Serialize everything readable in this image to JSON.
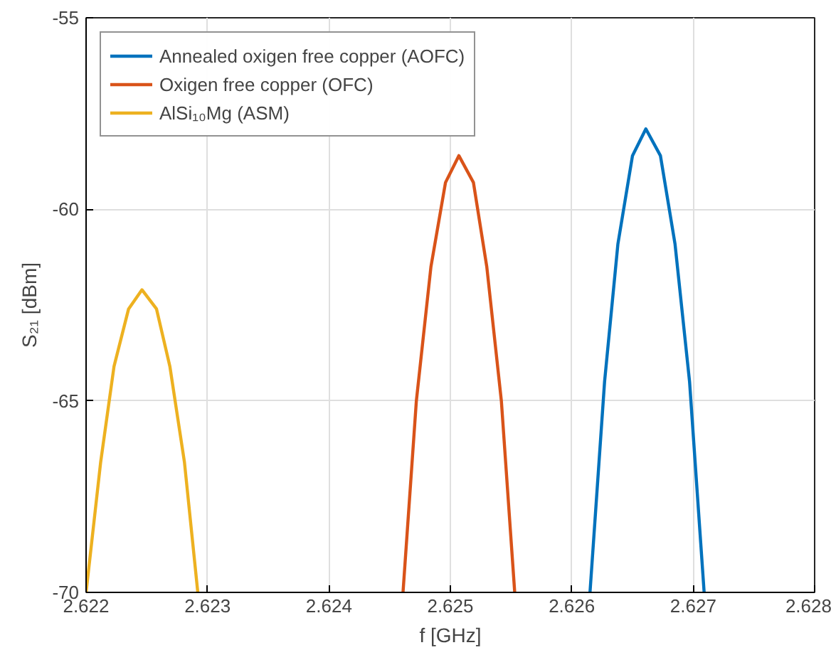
{
  "chart_data": {
    "type": "line",
    "xlabel": "f [GHz]",
    "ylabel": "S₂₁ [dBm]",
    "xlim": [
      2.622,
      2.628
    ],
    "xticks": [
      2.622,
      2.623,
      2.624,
      2.625,
      2.626,
      2.627,
      2.628
    ],
    "ylim": [
      -70,
      -55
    ],
    "yticks": [
      -70,
      -65,
      -60,
      -55
    ],
    "grid": true,
    "legend": "top left",
    "line_style": "solid",
    "marker": "none",
    "series": [
      {
        "name": "Annealed oxigen free copper (AOFC)",
        "color": "#0072bd",
        "x": [
          2.62615,
          2.62627,
          2.62638,
          2.6265,
          2.62661,
          2.62673,
          2.62685,
          2.62697,
          2.62709
        ],
        "values": [
          -70,
          -64.5,
          -60.9,
          -58.6,
          -57.9,
          -58.6,
          -60.9,
          -64.5,
          -70
        ]
      },
      {
        "name": "Oxigen free copper (OFC)",
        "color": "#d95319",
        "x": [
          2.62461,
          2.62472,
          2.62484,
          2.62496,
          2.62507,
          2.62519,
          2.6253,
          2.62542,
          2.62553
        ],
        "values": [
          -70,
          -65.0,
          -61.5,
          -59.3,
          -58.6,
          -59.3,
          -61.5,
          -65.0,
          -70
        ]
      },
      {
        "name": "AlSi₁₀Mg (ASM)",
        "color": "#edb120",
        "x": [
          2.622,
          2.62212,
          2.62223,
          2.62235,
          2.62246,
          2.62258,
          2.62269,
          2.62281,
          2.62292
        ],
        "values": [
          -70,
          -66.6,
          -64.1,
          -62.6,
          -62.1,
          -62.6,
          -64.1,
          -66.6,
          -70
        ]
      }
    ]
  }
}
